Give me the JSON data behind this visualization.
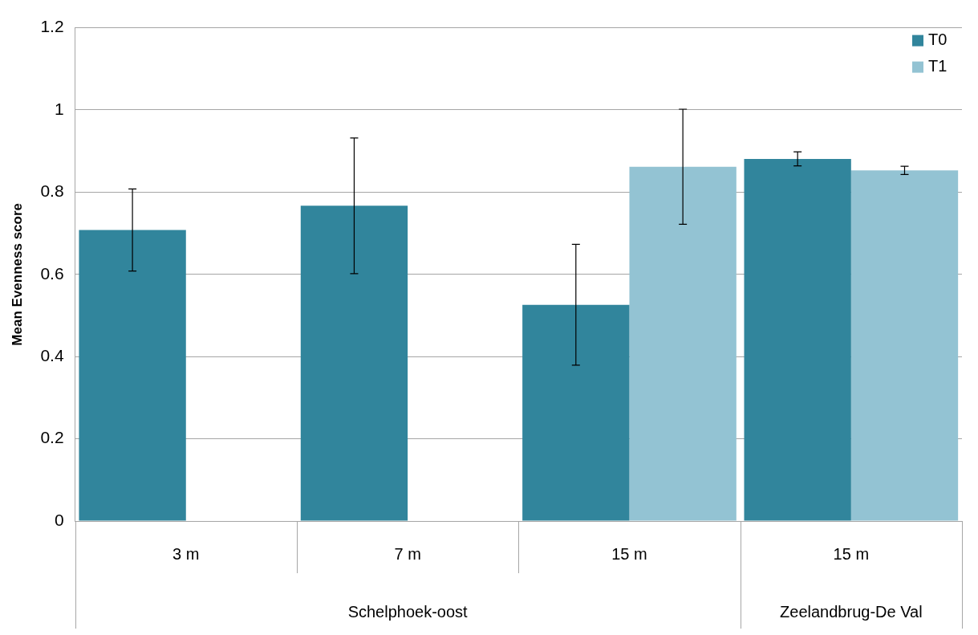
{
  "chart_data": {
    "type": "bar",
    "ylabel": "Mean Evenness score",
    "categories": [
      "3 m",
      "7 m",
      "15 m",
      "15 m"
    ],
    "series": [
      {
        "name": "T0",
        "color": "#31859c",
        "values": [
          0.708,
          0.767,
          0.526,
          0.881
        ],
        "errors": [
          0.1,
          0.165,
          0.147,
          0.017
        ]
      },
      {
        "name": "T1",
        "color": "#93c3d3",
        "values": [
          null,
          null,
          0.862,
          0.853
        ],
        "errors": [
          null,
          null,
          0.14,
          0.01
        ]
      }
    ],
    "ylim": [
      0,
      1.2
    ],
    "yticks": [
      0,
      0.2,
      0.4,
      0.6,
      0.8,
      1,
      1.2
    ],
    "grid": "y",
    "legend": "top right",
    "annotations": [
      "Schelphoek-oost",
      "Zeelandbrug-De Val"
    ]
  }
}
